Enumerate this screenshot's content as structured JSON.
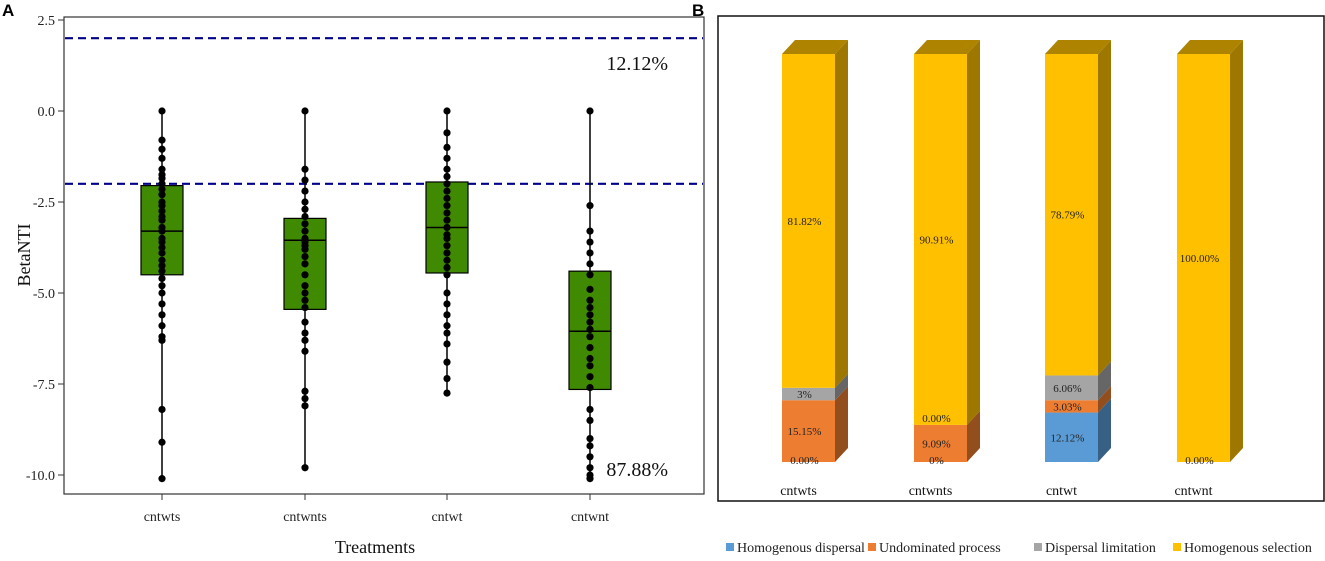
{
  "chart_data": [
    {
      "panel": "A",
      "type": "box",
      "xlabel": "Treatments",
      "ylabel": "BetaNTI",
      "ylim": [
        -10.4,
        2.6
      ],
      "yticks": [
        2.5,
        0.0,
        -2.5,
        -5.0,
        -7.5,
        -10.0
      ],
      "ytick_labels": [
        "2.5",
        "0.0",
        "-2.5",
        "-5.0",
        "-7.5",
        "-10.0"
      ],
      "threshold_lines": [
        2,
        -2
      ],
      "annotations": [
        {
          "text": "12.12%",
          "anchor": "upper"
        },
        {
          "text": "87.88%",
          "anchor": "lower"
        }
      ],
      "box_color": "#3f8a00",
      "line_color": "#00008b",
      "categories": [
        "cntwts",
        "cntwnts",
        "cntwt",
        "cntwnt"
      ],
      "series": [
        {
          "name": "cntwts",
          "q1": -4.5,
          "median": -3.3,
          "q3": -2.05,
          "whisker_low": -10.1,
          "whisker_high": 0.0,
          "points": [
            0.0,
            -0.8,
            -1.05,
            -1.3,
            -1.6,
            -1.75,
            -1.85,
            -2.0,
            -2.15,
            -2.3,
            -2.5,
            -2.6,
            -2.75,
            -2.9,
            -3.0,
            -3.2,
            -3.3,
            -3.5,
            -3.6,
            -3.75,
            -3.9,
            -4.1,
            -4.25,
            -4.4,
            -4.6,
            -4.8,
            -5.0,
            -5.3,
            -5.6,
            -5.9,
            -6.2,
            -6.3,
            -8.2,
            -9.1,
            -10.1
          ]
        },
        {
          "name": "cntwnts",
          "q1": -5.45,
          "median": -3.55,
          "q3": -2.95,
          "whisker_low": -9.8,
          "whisker_high": 0.0,
          "points": [
            0.0,
            -1.6,
            -1.9,
            -2.2,
            -2.5,
            -2.7,
            -2.9,
            -3.1,
            -3.3,
            -3.5,
            -3.6,
            -3.7,
            -3.8,
            -4.0,
            -4.2,
            -4.5,
            -4.8,
            -5.0,
            -5.2,
            -5.4,
            -5.8,
            -6.1,
            -6.3,
            -6.6,
            -7.7,
            -7.9,
            -8.1,
            -9.8
          ]
        },
        {
          "name": "cntwt",
          "q1": -4.45,
          "median": -3.2,
          "q3": -1.95,
          "whisker_low": -7.75,
          "whisker_high": 0.0,
          "points": [
            0.0,
            -0.6,
            -1.0,
            -1.3,
            -1.6,
            -1.8,
            -2.0,
            -2.2,
            -2.4,
            -2.6,
            -2.8,
            -3.0,
            -3.2,
            -3.4,
            -3.5,
            -3.7,
            -3.9,
            -4.1,
            -4.3,
            -4.5,
            -5.0,
            -5.3,
            -5.6,
            -5.9,
            -6.1,
            -6.4,
            -6.9,
            -7.35,
            -7.75
          ]
        },
        {
          "name": "cntwnt",
          "q1": -7.65,
          "median": -6.05,
          "q3": -4.4,
          "whisker_low": -10.1,
          "whisker_high": 0.0,
          "points": [
            0.0,
            -2.6,
            -3.3,
            -3.6,
            -3.9,
            -4.2,
            -4.5,
            -4.9,
            -5.2,
            -5.4,
            -5.6,
            -5.8,
            -6.0,
            -6.2,
            -6.5,
            -6.8,
            -7.0,
            -7.3,
            -7.6,
            -8.2,
            -8.5,
            -9.0,
            -9.2,
            -9.5,
            -9.8,
            -10.0,
            -10.1
          ]
        }
      ]
    },
    {
      "panel": "B",
      "type": "stacked_bar_3d",
      "categories": [
        "cntwts",
        "cntwnts",
        "cntwt",
        "cntwnt"
      ],
      "legend_position": "bottom",
      "series": [
        {
          "name": "Homogenous dispersal",
          "color": "#5b9bd5",
          "values": [
            0.0,
            0.0,
            12.12,
            0.0
          ],
          "labels": [
            "0.00%",
            "0%",
            "12.12%",
            "0.00%"
          ]
        },
        {
          "name": "Undominated process",
          "color": "#ed7d31",
          "values": [
            15.15,
            9.09,
            3.03,
            0.0
          ],
          "labels": [
            "15.15%",
            "9.09%",
            "3.03%",
            ""
          ]
        },
        {
          "name": "Dispersal limitation",
          "color": "#a5a5a5",
          "values": [
            3.03,
            0.0,
            6.06,
            0.0
          ],
          "labels": [
            "3%",
            "0.00%",
            "6.06%",
            ""
          ]
        },
        {
          "name": "Homogenous selection",
          "color": "#ffc000",
          "values": [
            81.82,
            90.91,
            78.79,
            100.0
          ],
          "labels": [
            "81.82%",
            "90.91%",
            "78.79%",
            "100.00%"
          ]
        }
      ]
    }
  ]
}
